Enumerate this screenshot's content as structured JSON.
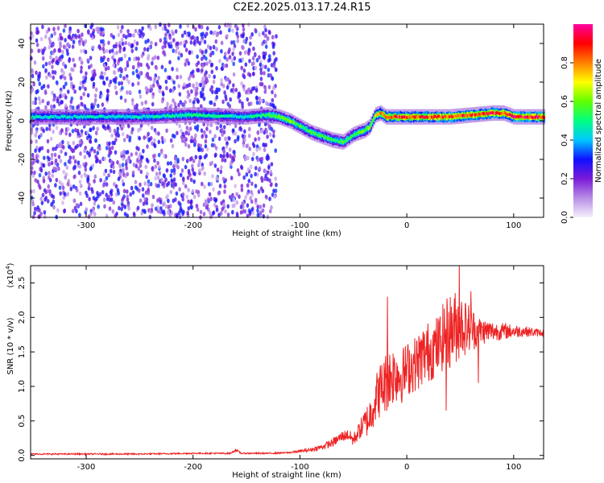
{
  "figure_title": "C2E2.2025.013.17.24.R15",
  "colors": {
    "signal_line": "#ee2222",
    "frame": "#000000"
  },
  "chart_data": [
    {
      "type": "heatmap",
      "title": "C2E2.2025.013.17.24.R15",
      "xlabel": "Height of straight line (km)",
      "ylabel": "Frequency (Hz)",
      "xlim": [
        -352,
        128
      ],
      "ylim": [
        -50,
        50
      ],
      "x_ticks": [
        -300,
        -200,
        -100,
        0,
        100
      ],
      "y_ticks": [
        -40,
        -20,
        0,
        20,
        40
      ],
      "colorbar": {
        "label": "Normalized spectral amplitude",
        "range": [
          0,
          1
        ],
        "ticks": [
          "0.0",
          "0.2",
          "0.4",
          "0.6",
          "0.8"
        ],
        "tick_values": [
          0.0,
          0.2,
          0.4,
          0.6,
          0.8
        ],
        "colormap": [
          "#f4f0fb",
          "#b88ee6",
          "#7a1ad8",
          "#1010ff",
          "#00c8ff",
          "#00ff80",
          "#60ff00",
          "#ffff00",
          "#ff8000",
          "#ff0000",
          "#ff00a0"
        ]
      },
      "ridge": {
        "x": [
          -352,
          -300,
          -250,
          -200,
          -150,
          -130,
          -120,
          -110,
          -100,
          -90,
          -80,
          -70,
          -60,
          -55,
          -50,
          -45,
          -40,
          -35,
          -30,
          -25,
          -20,
          -10,
          0,
          20,
          40,
          60,
          80,
          90,
          100,
          128
        ],
        "y": [
          2,
          2,
          2,
          3,
          2,
          3,
          2,
          0,
          -3,
          -6,
          -8,
          -10,
          -11,
          -9,
          -7,
          -6,
          -5,
          -3,
          3,
          4,
          2,
          2,
          2,
          2,
          2,
          3,
          4,
          4,
          2,
          2
        ],
        "amplitude": [
          0.45,
          0.45,
          0.45,
          0.5,
          0.45,
          0.55,
          0.6,
          0.6,
          0.55,
          0.55,
          0.55,
          0.55,
          0.55,
          0.55,
          0.55,
          0.6,
          0.6,
          0.6,
          0.7,
          0.8,
          0.85,
          0.9,
          0.9,
          0.9,
          0.9,
          0.9,
          0.9,
          0.88,
          0.95,
          0.95
        ]
      },
      "noise_region_x": [
        -352,
        -122
      ],
      "noise_amplitude": 0.15
    },
    {
      "type": "line",
      "xlabel": "Height of straight line (km)",
      "ylabel": "SNR (10 * v/v)",
      "y_scale_label": "(x10",
      "y_scale_exponent": "4",
      "y_scale_suffix": ")",
      "xlim": [
        -352,
        128
      ],
      "ylim": [
        -0.05,
        2.75
      ],
      "x_ticks": [
        -300,
        -200,
        -100,
        0,
        100
      ],
      "y_ticks": [
        "0.0",
        "0.5",
        "1.0",
        "1.5",
        "2.0",
        "2.5"
      ],
      "y_tick_values": [
        0.0,
        0.5,
        1.0,
        1.5,
        2.0,
        2.5
      ],
      "series": [
        {
          "x": [
            -352,
            -300,
            -250,
            -200,
            -165,
            -160,
            -155,
            -150,
            -130,
            -110,
            -100,
            -90,
            -80,
            -70,
            -60,
            -55,
            -50,
            -45,
            -40,
            -35,
            -30,
            -25,
            -20,
            -15,
            -10,
            -5,
            0,
            5,
            10,
            15,
            20,
            25,
            30,
            35,
            40,
            45,
            50,
            55,
            60,
            65,
            70,
            80,
            90,
            100,
            110,
            120,
            128
          ],
          "y": [
            0.02,
            0.02,
            0.02,
            0.03,
            0.03,
            0.08,
            0.03,
            0.03,
            0.03,
            0.04,
            0.06,
            0.08,
            0.12,
            0.18,
            0.28,
            0.3,
            0.22,
            0.35,
            0.45,
            0.55,
            0.8,
            0.95,
            1.05,
            1.15,
            1.2,
            1.15,
            1.25,
            1.3,
            1.35,
            1.45,
            1.5,
            1.55,
            1.6,
            1.75,
            1.8,
            1.85,
            1.9,
            1.85,
            1.85,
            1.8,
            1.8,
            1.8,
            1.8,
            1.8,
            1.8,
            1.78,
            1.78
          ],
          "spread": [
            0.01,
            0.01,
            0.01,
            0.01,
            0.01,
            0.02,
            0.01,
            0.01,
            0.01,
            0.01,
            0.02,
            0.03,
            0.04,
            0.06,
            0.08,
            0.08,
            0.1,
            0.12,
            0.2,
            0.28,
            0.35,
            0.4,
            0.45,
            0.45,
            0.45,
            0.4,
            0.4,
            0.4,
            0.42,
            0.45,
            0.45,
            0.45,
            0.45,
            0.5,
            0.55,
            0.55,
            0.5,
            0.4,
            0.35,
            0.25,
            0.2,
            0.15,
            0.12,
            0.1,
            0.08,
            0.06,
            0.05
          ],
          "peaks": [
            {
              "x": -18,
              "y": 2.3
            },
            {
              "x": 49,
              "y": 2.75
            },
            {
              "x": 60,
              "y": 2.38
            },
            {
              "x": 37,
              "y": 0.65
            },
            {
              "x": 67,
              "y": 1.05
            }
          ]
        }
      ]
    }
  ]
}
